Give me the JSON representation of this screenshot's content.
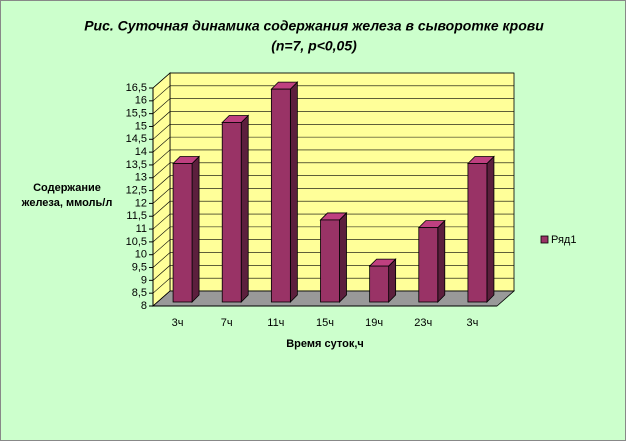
{
  "chart_data": {
    "type": "bar3d",
    "title": "Рис. Суточная динамика содержания железа в сыворотке крови",
    "subtitle": "(n=7, p<0,05)",
    "y_label": "Содержание железа, ммоль/л",
    "x_label": "Время суток,ч",
    "categories": [
      "3ч",
      "7ч",
      "11ч",
      "15ч",
      "19ч",
      "23ч",
      "3ч"
    ],
    "series": [
      {
        "name": "Ряд1",
        "color": "#993366",
        "values": [
          13.4,
          15.0,
          16.3,
          11.2,
          9.4,
          10.9,
          13.4
        ]
      }
    ],
    "ylim": [
      8,
      16.5
    ],
    "yticks": [
      8,
      {
        "value": 8.5,
        "label": "8,5"
      },
      9,
      {
        "value": 9.5,
        "label": "9,5"
      },
      10,
      {
        "value": 10.5,
        "label": "10,5"
      },
      11,
      {
        "value": 11.5,
        "label": "11,5"
      },
      12,
      {
        "value": 12.5,
        "label": "12,5"
      },
      13,
      {
        "value": 13.5,
        "label": "13,5"
      },
      14,
      {
        "value": 14.5,
        "label": "14,5"
      },
      15,
      {
        "value": 15.5,
        "label": "15,5"
      },
      16,
      {
        "value": 16.5,
        "label": "16,5"
      }
    ],
    "grid": true,
    "legend": "right"
  }
}
